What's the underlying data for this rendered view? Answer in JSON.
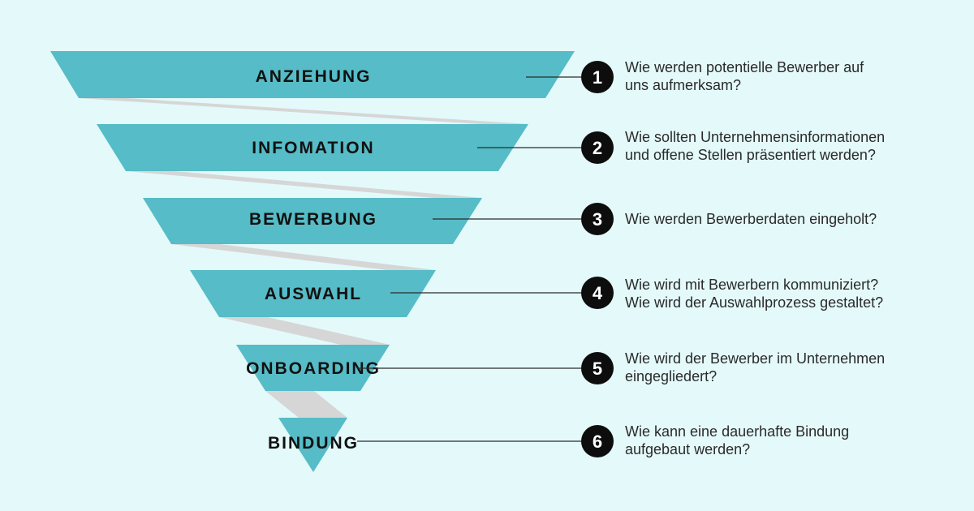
{
  "colors": {
    "background": "#e4f9fa",
    "stage_fill": "#56bcc7",
    "connector_fill": "#d6d6d6",
    "line": "#2b2b2b",
    "number_fill": "#0d0d0d"
  },
  "stages": [
    {
      "number": "1",
      "title": "ANZIEHUNG",
      "question": [
        "Wie werden potentielle Bewerber auf",
        "uns aufmerksam?"
      ]
    },
    {
      "number": "2",
      "title": "INFOMATION",
      "question": [
        "Wie sollten Unternehmensinformationen",
        "und offene Stellen präsentiert werden?"
      ]
    },
    {
      "number": "3",
      "title": "BEWERBUNG",
      "question": [
        "Wie werden Bewerberdaten eingeholt?"
      ]
    },
    {
      "number": "4",
      "title": "AUSWAHL",
      "question": [
        "Wie wird mit Bewerbern kommuniziert?",
        "Wie wird der Auswahlprozess gestaltet?"
      ]
    },
    {
      "number": "5",
      "title": "ONBOARDING",
      "question": [
        "Wie wird der Bewerber im Unternehmen",
        "eingegliedert?"
      ]
    },
    {
      "number": "6",
      "title": "BINDUNG",
      "question": [
        "Wie kann eine dauerhafte Bindung",
        "aufgebaut werden?"
      ]
    }
  ]
}
